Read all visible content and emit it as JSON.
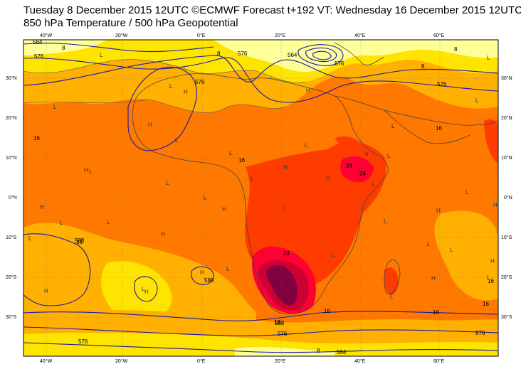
{
  "header": {
    "title_line1": "Tuesday 8 December 2015 12UTC ©ECMWF Forecast t+192 VT: Wednesday 16 December 2015 12UTC",
    "title_line2": "850 hPa Temperature / 500 hPa Geopotential"
  },
  "axes": {
    "lon_labels": [
      "40°W",
      "20°W",
      "0°E",
      "20°E",
      "40°E",
      "60°E"
    ],
    "lat_labels_right": [
      "30°N",
      "20°N",
      "10°N",
      "0°N",
      "10°S",
      "20°S",
      "30°S"
    ],
    "lat_labels_left": [
      "30°N",
      "20°N",
      "10°N",
      "0°N",
      "10°S",
      "20°S",
      "30°S"
    ]
  },
  "contour_labels": {
    "geopotential": [
      "564",
      "576",
      "576",
      "576",
      "564",
      "576",
      "576",
      "588",
      "588",
      "576",
      "576",
      "564",
      "576",
      "588"
    ],
    "temperature": [
      "8",
      "8",
      "8",
      "8",
      "16",
      "16",
      "16",
      "16",
      "16",
      "16",
      "24",
      "24",
      "24",
      "16",
      "16",
      "16",
      "8"
    ]
  },
  "pressure_marks": [
    "H",
    "H",
    "H",
    "H",
    "H",
    "H",
    "H",
    "H",
    "H",
    "H",
    "H",
    "H",
    "H",
    "H",
    "H",
    "H",
    "H",
    "L",
    "L",
    "L",
    "L",
    "L",
    "L",
    "L",
    "L",
    "L",
    "L",
    "L",
    "L",
    "L",
    "L",
    "L",
    "L",
    "L",
    "L",
    "L",
    "L",
    "L",
    "L",
    "L",
    "L",
    "L",
    "L",
    "L",
    "L"
  ],
  "colors": {
    "t_lt8": "#ffff99",
    "t_8_12": "#ffe400",
    "t_12_16": "#ffb000",
    "t_16_20": "#ff7800",
    "t_20_24": "#ff3c00",
    "t_24_28": "#ff0033",
    "t_28_32": "#cc0033",
    "t_gt32": "#800040",
    "contour": "#1a1aa6",
    "coast": "#444444",
    "grid": "#666666"
  }
}
